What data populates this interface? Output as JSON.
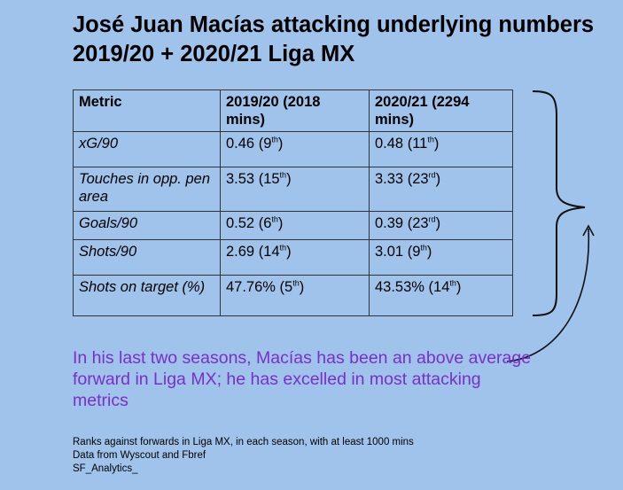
{
  "title": "José Juan Macías attacking underlying numbers 2019/20 + 2020/21 Liga MX",
  "table": {
    "headers": [
      "Metric",
      "2019/20 (2018 mins)",
      "2020/21 (2294 mins)"
    ],
    "rows": [
      {
        "metric": "xG/90",
        "s1": {
          "value": "0.46 (9",
          "rank": "th",
          "close": ")"
        },
        "s2": {
          "value": "0.48 (11",
          "rank": "th",
          "close": ")"
        }
      },
      {
        "metric": "Touches in opp. pen area",
        "s1": {
          "value": "3.53 (15",
          "rank": "th",
          "close": ")"
        },
        "s2": {
          "value": "3.33 (23",
          "rank": "rd",
          "close": ")"
        }
      },
      {
        "metric": "Goals/90",
        "s1": {
          "value": "0.52 (6",
          "rank": "th",
          "close": ")"
        },
        "s2": {
          "value": "0.39 (23",
          "rank": "rd",
          "close": ")"
        }
      },
      {
        "metric": "Shots/90",
        "s1": {
          "value": "2.69 (14",
          "rank": "th",
          "close": ")"
        },
        "s2": {
          "value": "3.01 (9",
          "rank": "th",
          "close": ")"
        }
      },
      {
        "metric": "Shots on target (%)",
        "s1": {
          "value": "47.76% (5",
          "rank": "th",
          "close": ")"
        },
        "s2": {
          "value": "43.53% (14",
          "rank": "th",
          "close": ")"
        }
      }
    ]
  },
  "annotation": "In his last two seasons, Macías has been an above average forward in Liga MX; he has excelled in most attacking metrics",
  "footnotes": [
    "Ranks against forwards in Liga MX, in each season, with at least 1000 mins",
    "Data from Wyscout and Fbref",
    "SF_Analytics_"
  ],
  "colors": {
    "background": "#9fc3ea",
    "annotation": "#7b2fc9",
    "grid": "#333333"
  }
}
